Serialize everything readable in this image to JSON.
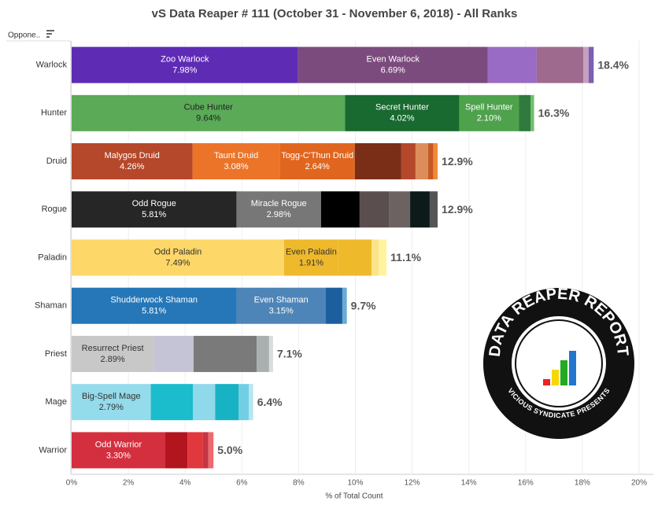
{
  "chart_data": {
    "type": "stacked_bar",
    "orientation": "horizontal",
    "title": "vS Data Reaper # 111 (October 31 - November 6, 2018) - All Ranks",
    "row_header": "Oppone..",
    "x_label": "% of Total Count",
    "xlim": [
      0,
      20
    ],
    "xticks": [
      {
        "value": 0,
        "label": "0%"
      },
      {
        "value": 2,
        "label": "2%"
      },
      {
        "value": 4,
        "label": "4%"
      },
      {
        "value": 6,
        "label": "6%"
      },
      {
        "value": 8,
        "label": "8%"
      },
      {
        "value": 10,
        "label": "10%"
      },
      {
        "value": 12,
        "label": "12%"
      },
      {
        "value": 14,
        "label": "14%"
      },
      {
        "value": 16,
        "label": "16%"
      },
      {
        "value": 18,
        "label": "18%"
      },
      {
        "value": 20,
        "label": "20%"
      }
    ],
    "grid": true,
    "categories": [
      "Warlock",
      "Hunter",
      "Druid",
      "Rogue",
      "Paladin",
      "Shaman",
      "Priest",
      "Mage",
      "Warrior"
    ],
    "totals": [
      18.4,
      16.3,
      12.9,
      12.9,
      11.1,
      9.7,
      7.1,
      6.4,
      5.0
    ],
    "total_labels": [
      "18.4%",
      "16.3%",
      "12.9%",
      "12.9%",
      "11.1%",
      "9.7%",
      "7.1%",
      "6.4%",
      "5.0%"
    ],
    "bars": [
      {
        "segments": [
          {
            "name": "Zoo Warlock",
            "value": 7.98,
            "label": "7.98%",
            "color": "#5e2bb5"
          },
          {
            "name": "Even Warlock",
            "value": 6.69,
            "label": "6.69%",
            "color": "#7b4b7e"
          },
          {
            "value": 1.72,
            "color": "#9a6bc4"
          },
          {
            "value": 1.64,
            "color": "#9e6b8e"
          },
          {
            "value": 0.19,
            "color": "#c7a0c0"
          },
          {
            "value": 0.18,
            "color": "#7b5fb0"
          }
        ]
      },
      {
        "segments": [
          {
            "name": "Cube Hunter",
            "value": 9.64,
            "label": "9.64%",
            "color": "#5aaa57",
            "text_color": "#222"
          },
          {
            "name": "Secret Hunter",
            "value": 4.02,
            "label": "4.02%",
            "color": "#186a30"
          },
          {
            "name": "Spell Hunter",
            "value": 2.1,
            "label": "2.10%",
            "color": "#4ea24c"
          },
          {
            "value": 0.42,
            "color": "#2f7a3c"
          },
          {
            "value": 0.12,
            "color": "#6fc06a"
          }
        ]
      },
      {
        "segments": [
          {
            "name": "Malygos Druid",
            "value": 4.26,
            "label": "4.26%",
            "color": "#b5482a"
          },
          {
            "name": "Taunt Druid",
            "value": 3.08,
            "label": "3.08%",
            "color": "#ec7428"
          },
          {
            "name": "Togg-C'Thun Druid",
            "value": 2.64,
            "label": "2.64%",
            "color": "#e0661f"
          },
          {
            "value": 1.64,
            "color": "#7a2e17"
          },
          {
            "value": 0.5,
            "color": "#b5482a"
          },
          {
            "value": 0.44,
            "color": "#dd8d5c"
          },
          {
            "value": 0.19,
            "color": "#c75a22"
          },
          {
            "value": 0.15,
            "color": "#f08a3a"
          }
        ]
      },
      {
        "segments": [
          {
            "name": "Odd Rogue",
            "value": 5.81,
            "label": "5.81%",
            "color": "#262626"
          },
          {
            "name": "Miracle Rogue",
            "value": 2.98,
            "label": "2.98%",
            "color": "#777777"
          },
          {
            "value": 1.36,
            "color": "#000000"
          },
          {
            "value": 1.03,
            "color": "#5a4e4e"
          },
          {
            "value": 0.75,
            "color": "#6d6262"
          },
          {
            "value": 0.69,
            "color": "#0c1a1a"
          },
          {
            "value": 0.28,
            "color": "#555555"
          }
        ]
      },
      {
        "segments": [
          {
            "name": "Odd Paladin",
            "value": 7.49,
            "label": "7.49%",
            "color": "#fdd768",
            "text_color": "#333"
          },
          {
            "name": "Even Paladin",
            "value": 1.91,
            "label": "1.91%",
            "color": "#efb92c",
            "text_color": "#333"
          },
          {
            "value": 1.17,
            "color": "#efb92c"
          },
          {
            "value": 0.25,
            "color": "#fce38a"
          },
          {
            "value": 0.28,
            "color": "#fff3a0"
          }
        ]
      },
      {
        "segments": [
          {
            "name": "Shudderwock Shaman",
            "value": 5.81,
            "label": "5.81%",
            "color": "#2577b8"
          },
          {
            "name": "Even Shaman",
            "value": 3.15,
            "label": "3.15%",
            "color": "#4e85b8"
          },
          {
            "value": 0.58,
            "color": "#1d5e9e"
          },
          {
            "value": 0.16,
            "color": "#6aa9d8"
          }
        ]
      },
      {
        "segments": [
          {
            "name": "Resurrect Priest",
            "value": 2.89,
            "label": "2.89%",
            "color": "#c8c8c8",
            "text_color": "#333"
          },
          {
            "value": 1.41,
            "color": "#c4c4d6"
          },
          {
            "value": 2.22,
            "color": "#7a7a7a"
          },
          {
            "value": 0.44,
            "color": "#aab0b0"
          },
          {
            "value": 0.14,
            "color": "#dcdcdc"
          }
        ]
      },
      {
        "segments": [
          {
            "name": "Big-Spell Mage",
            "value": 2.79,
            "label": "2.79%",
            "color": "#94dbec",
            "text_color": "#333"
          },
          {
            "value": 1.49,
            "color": "#1bbccc"
          },
          {
            "value": 0.78,
            "color": "#8fd9ea"
          },
          {
            "value": 0.83,
            "color": "#17b3c4"
          },
          {
            "value": 0.36,
            "color": "#72cfe3"
          },
          {
            "value": 0.15,
            "color": "#b8e6f3"
          }
        ]
      },
      {
        "segments": [
          {
            "name": "Odd Warrior",
            "value": 3.3,
            "label": "3.30%",
            "color": "#d42f3e"
          },
          {
            "value": 0.78,
            "color": "#b3151f"
          },
          {
            "value": 0.55,
            "color": "#e0383d"
          },
          {
            "value": 0.19,
            "color": "#c43545"
          },
          {
            "value": 0.18,
            "color": "#ee6a70"
          }
        ]
      }
    ],
    "logo": {
      "title": "DATA REAPER REPORT",
      "subtitle": "VICIOUS SYNDICATE PRESENTS"
    }
  }
}
